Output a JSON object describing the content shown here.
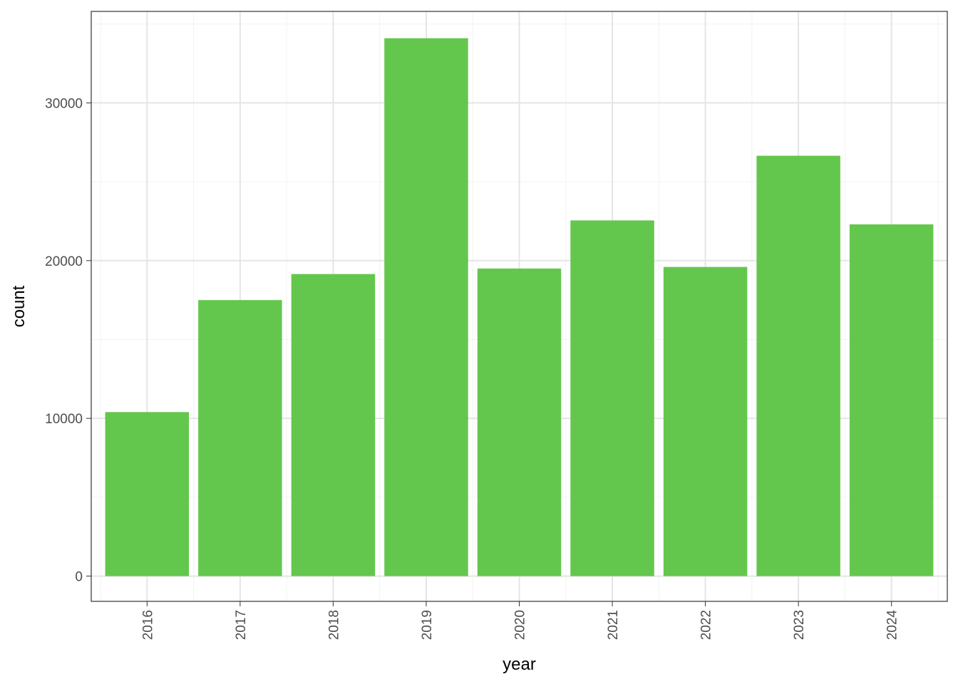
{
  "chart_data": {
    "type": "bar",
    "title": "",
    "xlabel": "year",
    "ylabel": "count",
    "categories": [
      "2016",
      "2017",
      "2018",
      "2019",
      "2020",
      "2021",
      "2022",
      "2023",
      "2024"
    ],
    "values": [
      10400,
      17500,
      19150,
      34100,
      19500,
      22550,
      19600,
      26650,
      22300
    ],
    "ylim": [
      -1600,
      35800
    ],
    "y_ticks": [
      0,
      10000,
      20000,
      30000
    ],
    "y_tick_labels": [
      "0",
      "10000",
      "20000",
      "30000"
    ],
    "x_tick_rotation": "vertical",
    "grid": true,
    "legend": "none",
    "colors": {
      "bar": "#64c74d",
      "panel_background": "#ffffff",
      "grid_major": "#e5e5e5",
      "grid_minor": "#f2f2f2",
      "border": "#333333"
    }
  }
}
